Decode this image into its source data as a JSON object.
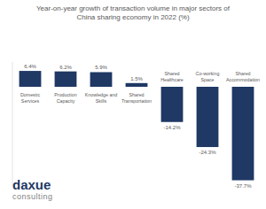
{
  "chart_data": {
    "type": "bar",
    "title": "Year-on-year growth of transaction volume in major sectors of China sharing economy in 2022 (%)",
    "categories": [
      "Domestic Services",
      "Production Capacity",
      "Knowledge and Skills",
      "Shared Transportation",
      "Shared Healthcare",
      "Co-working Space",
      "Shared Accommodation"
    ],
    "values": [
      6.4,
      6.2,
      5.9,
      1.5,
      -14.2,
      -24.3,
      -37.7
    ],
    "value_labels": [
      "6.4%",
      "6.2%",
      "5.9%",
      "1.5%",
      "-14.2%",
      "-24.3%",
      "-37.7%"
    ],
    "color": "#1f3864",
    "ylim": [
      -40,
      10
    ],
    "yticks": [],
    "grid": false,
    "data_labels": true,
    "tick_labels": "x"
  },
  "logo": {
    "text": "daxue",
    "subtext": "consulting"
  }
}
